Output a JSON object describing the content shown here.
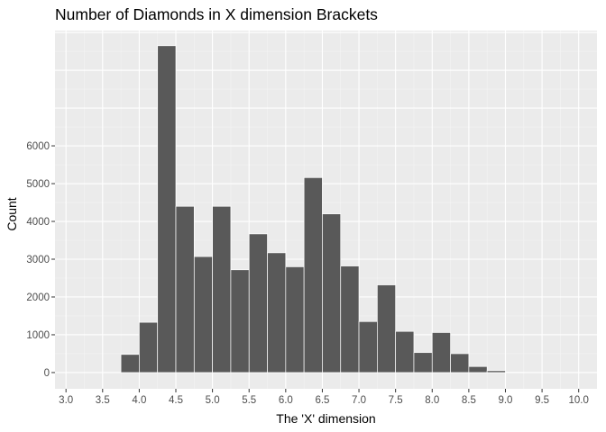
{
  "chart_data": {
    "type": "bar",
    "title": "Number of Diamonds in X dimension Brackets",
    "xlabel": "The 'X' dimension",
    "ylabel": "Count",
    "bin_width": 0.25,
    "bins": [
      {
        "start": 2.875,
        "count": 0
      },
      {
        "start": 3.125,
        "count": 0
      },
      {
        "start": 3.375,
        "count": 0
      },
      {
        "start": 3.625,
        "count": 0
      },
      {
        "start": 3.75,
        "count": 480
      },
      {
        "start": 4.0,
        "count": 1330
      },
      {
        "start": 4.25,
        "count": 8650
      },
      {
        "start": 4.5,
        "count": 4400
      },
      {
        "start": 4.75,
        "count": 3070
      },
      {
        "start": 5.0,
        "count": 4400
      },
      {
        "start": 5.25,
        "count": 2720
      },
      {
        "start": 5.5,
        "count": 3670
      },
      {
        "start": 5.75,
        "count": 3170
      },
      {
        "start": 6.0,
        "count": 2800
      },
      {
        "start": 6.25,
        "count": 5160
      },
      {
        "start": 6.5,
        "count": 4200
      },
      {
        "start": 6.75,
        "count": 2820
      },
      {
        "start": 7.0,
        "count": 1350
      },
      {
        "start": 7.25,
        "count": 2320
      },
      {
        "start": 7.5,
        "count": 1090
      },
      {
        "start": 7.75,
        "count": 530
      },
      {
        "start": 8.0,
        "count": 1060
      },
      {
        "start": 8.25,
        "count": 500
      },
      {
        "start": 8.5,
        "count": 160
      },
      {
        "start": 8.75,
        "count": 50
      },
      {
        "start": 9.0,
        "count": 8
      },
      {
        "start": 9.25,
        "count": 5
      },
      {
        "start": 9.5,
        "count": 3
      },
      {
        "start": 9.75,
        "count": 2
      },
      {
        "start": 10.0,
        "count": 3
      }
    ],
    "xlim": [
      2.85,
      10.25
    ],
    "ylim": [
      -430,
      9050
    ],
    "x_ticks": [
      "3.0",
      "3.5",
      "4.0",
      "4.5",
      "5.0",
      "5.5",
      "6.0",
      "6.5",
      "7.0",
      "7.5",
      "8.0",
      "8.5",
      "9.0",
      "9.5",
      "10.0"
    ],
    "y_ticks": [
      "0",
      "1000",
      "2000",
      "3000",
      "4000",
      "5000",
      "6000"
    ],
    "grid": true,
    "colors": {
      "panel_background": "#ebebeb",
      "grid_major": "#ffffff",
      "grid_minor": "#f4f4f4",
      "bar_fill": "#595959",
      "bar_outline": "#ffffff",
      "tick_text": "#4d4d4d",
      "tick_mark": "#333333"
    }
  }
}
